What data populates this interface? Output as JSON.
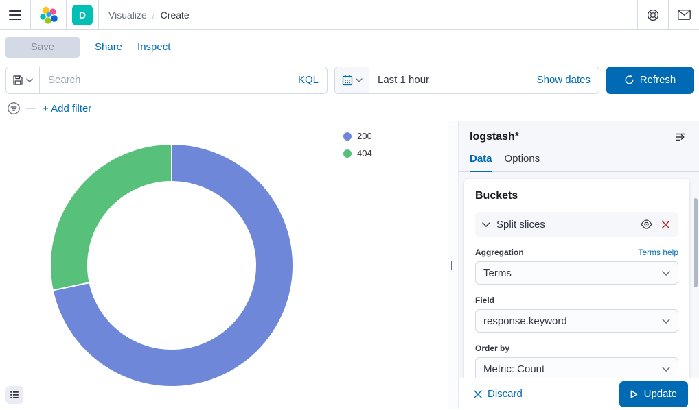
{
  "colors": {
    "primary": "#006BB4",
    "space_badge": "#00BFB3",
    "danger": "#BD271E",
    "slice_200": "#6F87D8",
    "slice_404": "#57C17B"
  },
  "header": {
    "breadcrumb": {
      "section": "Visualize",
      "separator": "/",
      "current": "Create"
    },
    "space_initial": "D"
  },
  "toolbar": {
    "save_label": "Save",
    "share_label": "Share",
    "inspect_label": "Inspect"
  },
  "query_bar": {
    "search_placeholder": "Search",
    "language_label": "KQL",
    "time_value": "Last 1 hour",
    "show_dates_label": "Show dates",
    "refresh_label": "Refresh"
  },
  "filter_bar": {
    "add_filter_label": "+ Add filter"
  },
  "chart_data": {
    "type": "pie",
    "subtype": "donut",
    "title": "",
    "series": [
      {
        "label": "200",
        "value": 71.7,
        "color": "#6F87D8"
      },
      {
        "label": "404",
        "value": 28.3,
        "color": "#57C17B"
      }
    ],
    "value_unit": "percent (estimated from arc angles)",
    "start_angle_deg": 0,
    "direction": "clockwise",
    "inner_radius_ratio": 0.69,
    "legend_position": "top-right",
    "legend_entries": [
      "200",
      "404"
    ]
  },
  "sidebar": {
    "index_pattern": "logstash*",
    "tabs": [
      {
        "label": "Data"
      },
      {
        "label": "Options"
      }
    ],
    "active_tab": "Data",
    "buckets": {
      "section_title": "Buckets",
      "bucket_type": "Split slices",
      "aggregation": {
        "label": "Aggregation",
        "value": "Terms",
        "help_label": "Terms help"
      },
      "field": {
        "label": "Field",
        "value": "response.keyword"
      },
      "order_by": {
        "label": "Order by",
        "value": "Metric: Count"
      }
    },
    "footer": {
      "discard_label": "Discard",
      "update_label": "Update"
    }
  }
}
